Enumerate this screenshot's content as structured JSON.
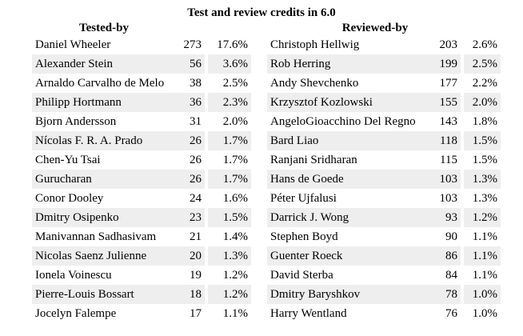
{
  "title": "Test and review credits in 6.0",
  "tested_by": {
    "header": "Tested-by",
    "rows": [
      {
        "name": "Daniel Wheeler",
        "count": "273",
        "pct": "17.6%"
      },
      {
        "name": "Alexander Stein",
        "count": "56",
        "pct": "3.6%"
      },
      {
        "name": "Arnaldo Carvalho de Melo",
        "count": "38",
        "pct": "2.5%"
      },
      {
        "name": "Philipp Hortmann",
        "count": "36",
        "pct": "2.3%"
      },
      {
        "name": "Bjorn Andersson",
        "count": "31",
        "pct": "2.0%"
      },
      {
        "name": "Nícolas F. R. A. Prado",
        "count": "26",
        "pct": "1.7%"
      },
      {
        "name": "Chen-Yu Tsai",
        "count": "26",
        "pct": "1.7%"
      },
      {
        "name": "Gurucharan",
        "count": "26",
        "pct": "1.7%"
      },
      {
        "name": "Conor Dooley",
        "count": "24",
        "pct": "1.6%"
      },
      {
        "name": "Dmitry Osipenko",
        "count": "23",
        "pct": "1.5%"
      },
      {
        "name": "Manivannan Sadhasivam",
        "count": "21",
        "pct": "1.4%"
      },
      {
        "name": "Nicolas Saenz Julienne",
        "count": "20",
        "pct": "1.3%"
      },
      {
        "name": "Ionela Voinescu",
        "count": "19",
        "pct": "1.2%"
      },
      {
        "name": "Pierre-Louis Bossart",
        "count": "18",
        "pct": "1.2%"
      },
      {
        "name": "Jocelyn Falempe",
        "count": "17",
        "pct": "1.1%"
      }
    ]
  },
  "reviewed_by": {
    "header": "Reviewed-by",
    "rows": [
      {
        "name": "Christoph Hellwig",
        "count": "203",
        "pct": "2.6%"
      },
      {
        "name": "Rob Herring",
        "count": "199",
        "pct": "2.5%"
      },
      {
        "name": "Andy Shevchenko",
        "count": "177",
        "pct": "2.2%"
      },
      {
        "name": "Krzysztof Kozlowski",
        "count": "155",
        "pct": "2.0%"
      },
      {
        "name": "AngeloGioacchino Del Regno",
        "count": "143",
        "pct": "1.8%"
      },
      {
        "name": "Bard Liao",
        "count": "118",
        "pct": "1.5%"
      },
      {
        "name": "Ranjani Sridharan",
        "count": "115",
        "pct": "1.5%"
      },
      {
        "name": "Hans de Goede",
        "count": "103",
        "pct": "1.3%"
      },
      {
        "name": "Péter Ujfalusi",
        "count": "103",
        "pct": "1.3%"
      },
      {
        "name": "Darrick J. Wong",
        "count": "93",
        "pct": "1.2%"
      },
      {
        "name": "Stephen Boyd",
        "count": "90",
        "pct": "1.1%"
      },
      {
        "name": "Guenter Roeck",
        "count": "86",
        "pct": "1.1%"
      },
      {
        "name": "David Sterba",
        "count": "84",
        "pct": "1.1%"
      },
      {
        "name": "Dmitry Baryshkov",
        "count": "78",
        "pct": "1.0%"
      },
      {
        "name": "Harry Wentland",
        "count": "76",
        "pct": "1.0%"
      }
    ]
  }
}
